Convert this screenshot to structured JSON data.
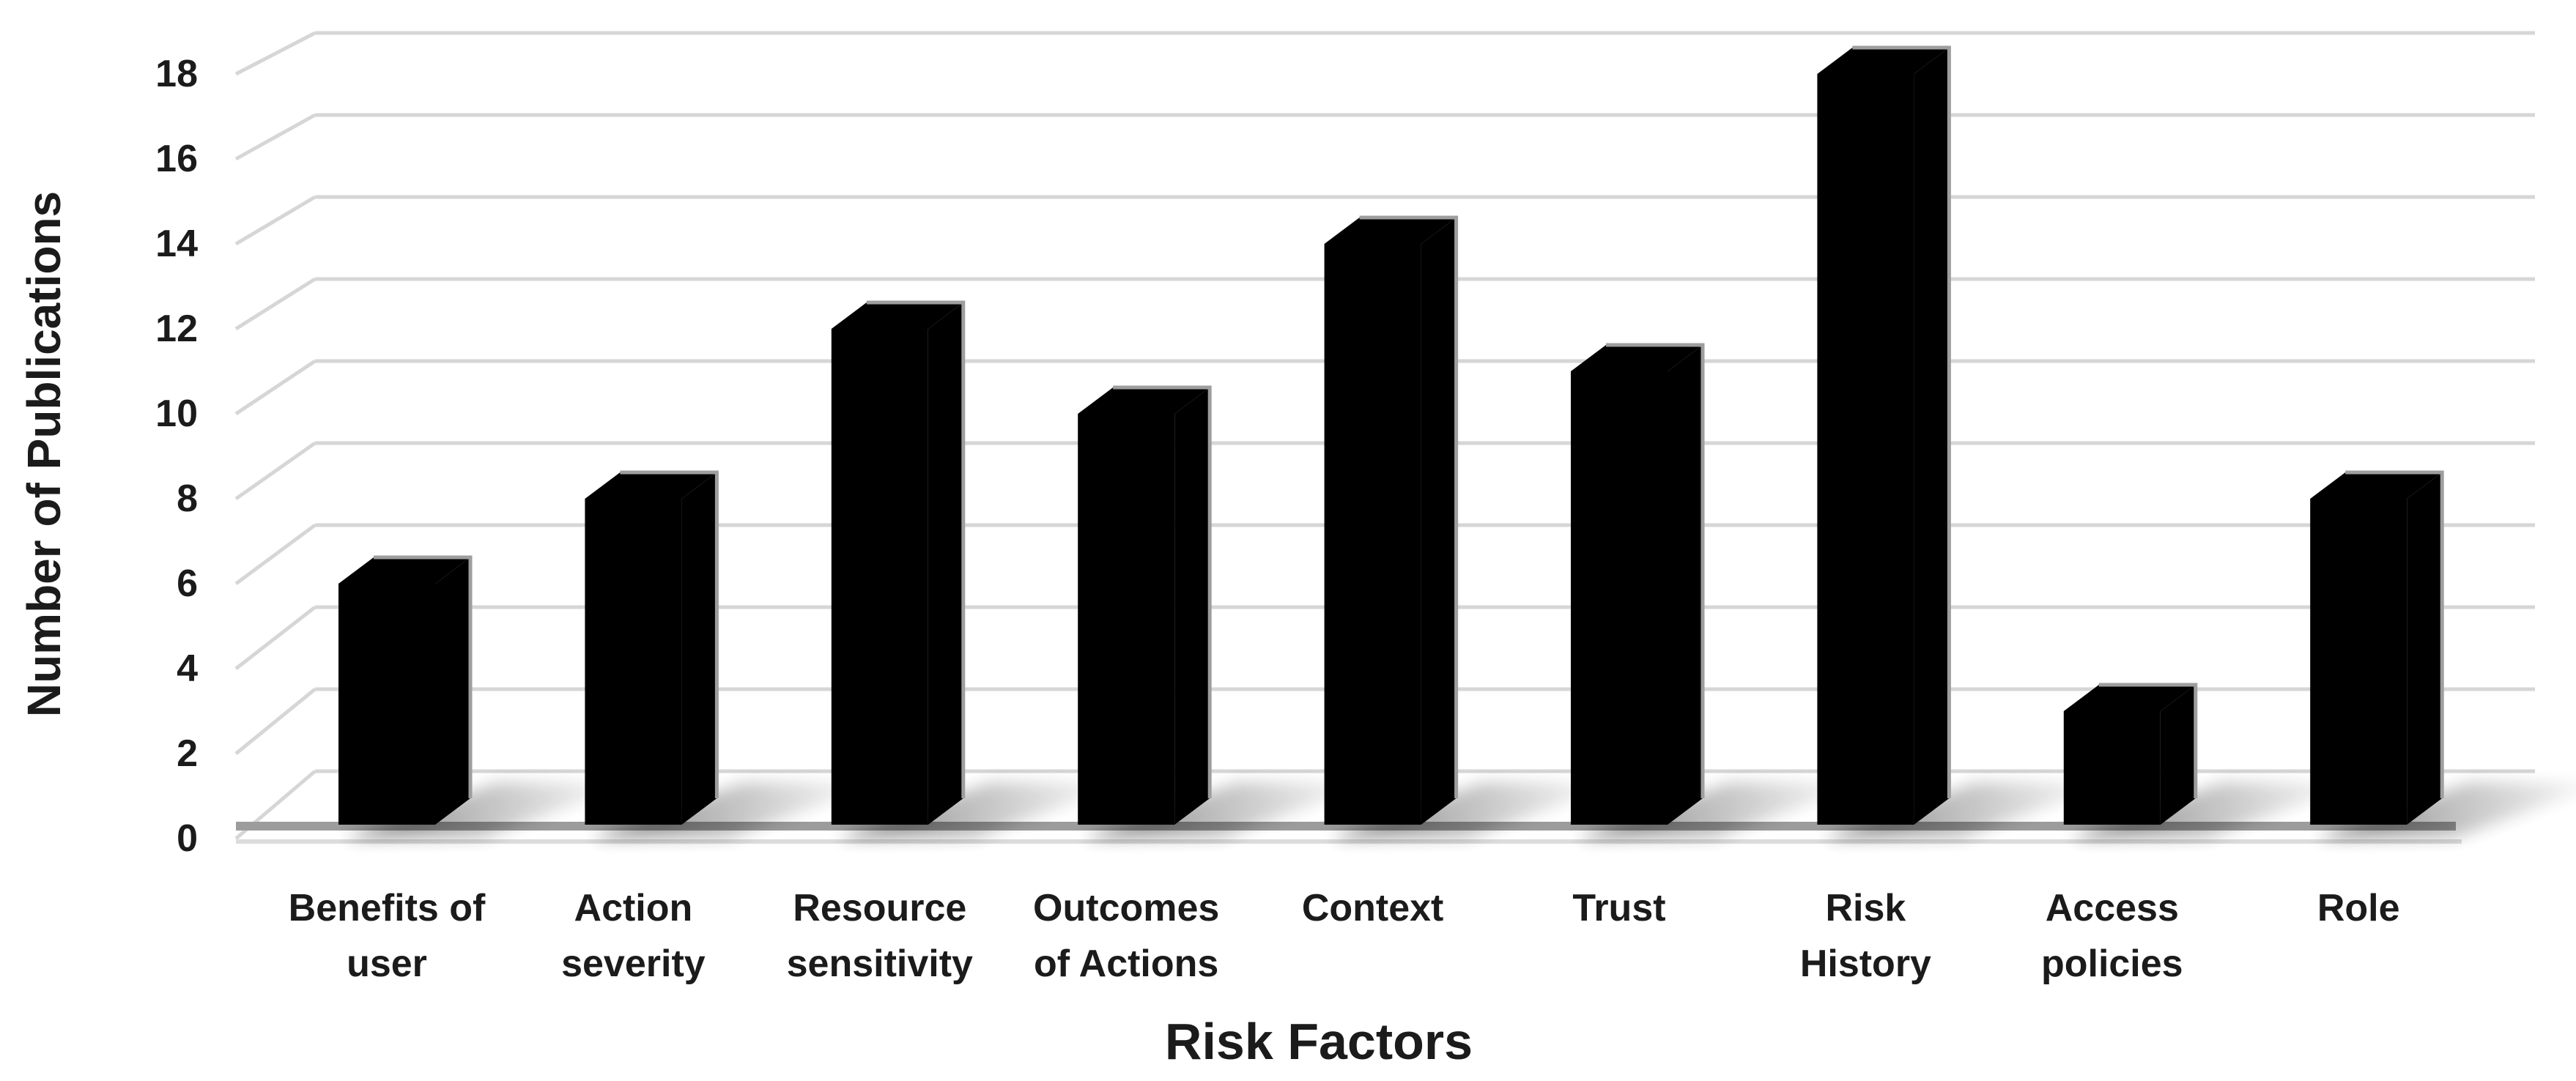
{
  "chart_data": {
    "type": "bar",
    "style": "3d-perspective-black-bars",
    "title": "",
    "categories": [
      "Benefits of user",
      "Action severity",
      "Resource sensitivity",
      "Outcomes of Actions",
      "Context",
      "Trust",
      "Risk History",
      "Access policies",
      "Role"
    ],
    "categories_lines": [
      [
        "Benefits of",
        "user"
      ],
      [
        "Action",
        "severity"
      ],
      [
        "Resource",
        "sensitivity"
      ],
      [
        "Outcomes",
        "of Actions"
      ],
      [
        "Context",
        ""
      ],
      [
        "Trust",
        ""
      ],
      [
        "Risk",
        "History"
      ],
      [
        "Access",
        "policies"
      ],
      [
        "Role",
        ""
      ]
    ],
    "values": [
      6,
      8,
      12,
      10,
      14,
      11,
      18,
      3,
      8
    ],
    "xlabel": "Risk Factors",
    "ylabel": "Number of Publications",
    "ylim": [
      0,
      18
    ],
    "ytick_step": 2,
    "yticks": [
      0,
      2,
      4,
      6,
      8,
      10,
      12,
      14,
      16,
      18
    ],
    "legend_position": "none",
    "grid": true,
    "colors": {
      "bar": "#000000",
      "bar_edge_highlight": "#9e9e9e",
      "gridline": "#d6d6d6",
      "floor_front_edge": "#9c9c9c",
      "floor_front_line": "#dcdcdc",
      "text": "#1b1b1b",
      "background": "#ffffff"
    }
  }
}
